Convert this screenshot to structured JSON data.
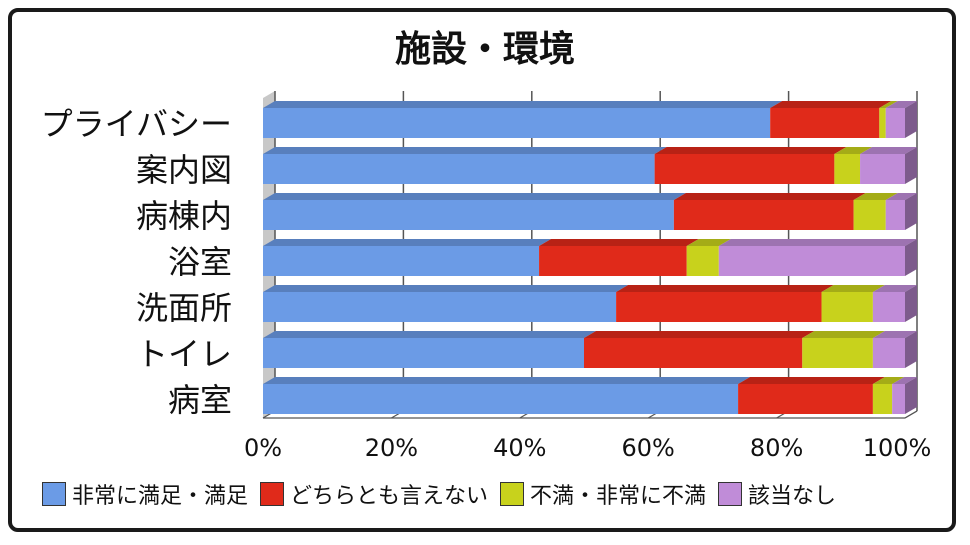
{
  "chart_data": {
    "type": "bar",
    "orientation": "horizontal",
    "stacked": true,
    "percent": true,
    "title": "施設・環境",
    "categories": [
      "プライバシー",
      "案内図",
      "病棟内",
      "浴室",
      "洗面所",
      "トイレ",
      "病室"
    ],
    "series": [
      {
        "name": "非常に満足・満足",
        "color": "#6b9be6",
        "values": [
          79,
          61,
          64,
          43,
          55,
          50,
          74
        ]
      },
      {
        "name": "どちらとも言えない",
        "color": "#e02a1a",
        "values": [
          17,
          28,
          28,
          23,
          32,
          34,
          21
        ]
      },
      {
        "name": "不満・非常に不満",
        "color": "#c8d21c",
        "values": [
          1,
          4,
          5,
          5,
          8,
          11,
          3
        ]
      },
      {
        "name": "該当なし",
        "color": "#c08cd8",
        "values": [
          3,
          7,
          3,
          29,
          5,
          5,
          2
        ]
      }
    ],
    "x_ticks": [
      "0%",
      "20%",
      "40%",
      "60%",
      "80%",
      "100%"
    ],
    "xlim": [
      0,
      100
    ],
    "grid": true,
    "legend": "bottom"
  }
}
